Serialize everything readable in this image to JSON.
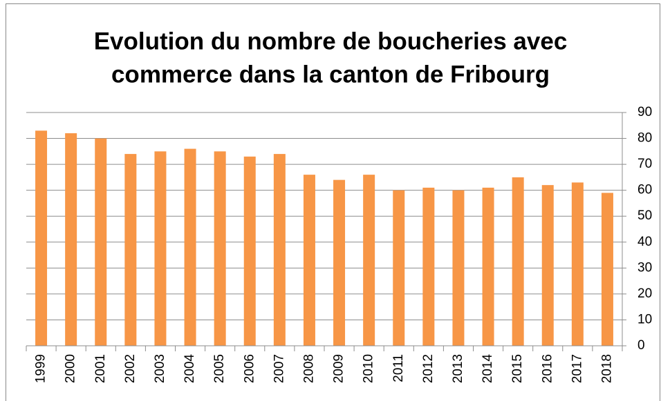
{
  "chart_data": {
    "type": "bar",
    "title": [
      "Evolution du nombre de boucheries avec",
      "commerce dans la canton de Fribourg"
    ],
    "categories": [
      "1999",
      "2000",
      "2001",
      "2002",
      "2003",
      "2004",
      "2005",
      "2006",
      "2007",
      "2008",
      "2009",
      "2010",
      "2011",
      "2012",
      "2013",
      "2014",
      "2015",
      "2016",
      "2017",
      "2018"
    ],
    "values": [
      83,
      82,
      80,
      74,
      75,
      76,
      75,
      73,
      74,
      66,
      64,
      66,
      60,
      61,
      60,
      61,
      65,
      62,
      63,
      59
    ],
    "color": "#f79646",
    "ylim": [
      0,
      90
    ],
    "yticks": [
      0,
      10,
      20,
      30,
      40,
      50,
      60,
      70,
      80,
      90
    ],
    "y_axis_side": "right",
    "grid": true
  }
}
